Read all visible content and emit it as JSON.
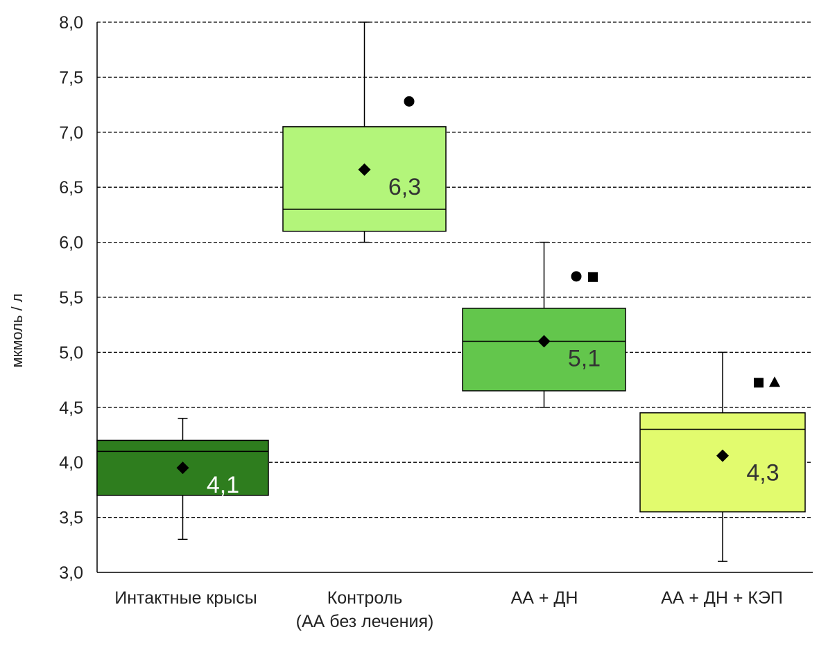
{
  "chart_data": {
    "type": "boxplot",
    "ylabel": "мкмоль / л",
    "ylim": [
      3.0,
      8.0
    ],
    "y_ticks": [
      "3,0",
      "3,5",
      "4,0",
      "4,5",
      "5,0",
      "5,5",
      "6,0",
      "6,5",
      "7,0",
      "7,5",
      "8,0"
    ],
    "grid": true,
    "categories": [
      {
        "lines": [
          "Интактные  крысы"
        ]
      },
      {
        "lines": [
          "Контроль",
          "(АА без лечения)"
        ]
      },
      {
        "lines": [
          "АА + ДН"
        ]
      },
      {
        "lines": [
          "АА + ДН + КЭП"
        ]
      }
    ],
    "boxes": [
      {
        "whisker_low": 3.3,
        "q1": 3.7,
        "median": 4.1,
        "q3": 4.2,
        "whisker_high": 4.4,
        "mean": 3.95,
        "median_label": "4,1",
        "label_color": "#ffffff",
        "fill": "#2e7d1e",
        "markers": []
      },
      {
        "whisker_low": 6.0,
        "q1": 6.1,
        "median": 6.3,
        "q3": 7.05,
        "whisker_high": 8.0,
        "mean": 6.66,
        "median_label": "6,3",
        "label_color": "#333333",
        "fill": "#b3f57a",
        "markers": [
          "circle"
        ]
      },
      {
        "whisker_low": 4.5,
        "q1": 4.65,
        "median": 5.1,
        "q3": 5.4,
        "whisker_high": 6.0,
        "mean": 5.1,
        "median_label": "5,1",
        "label_color": "#333333",
        "fill": "#63c64c",
        "markers": [
          "circle",
          "square"
        ]
      },
      {
        "whisker_low": 3.1,
        "q1": 3.55,
        "median": 4.3,
        "q3": 4.45,
        "whisker_high": 5.0,
        "mean": 4.06,
        "median_label": "4,3",
        "label_color": "#333333",
        "fill": "#e2fb6e",
        "markers": [
          "square",
          "triangle"
        ]
      }
    ],
    "marker_levels": [
      7.28,
      5.69,
      4.73
    ]
  }
}
